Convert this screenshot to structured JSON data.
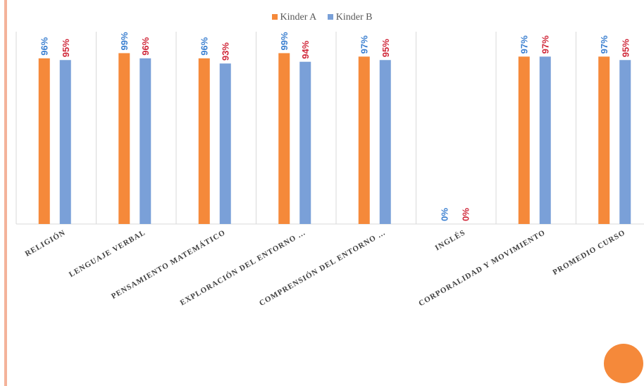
{
  "chart_data": {
    "type": "bar",
    "categories": [
      "RELIGIÓN",
      "LENGUAJE VERBAL",
      "PENSAMIENTO MATEMÁTICO",
      "EXPLORACIÓN DEL ENTORNO ...",
      "COMPRENSIÓN DEL ENTORNO ...",
      "INGLÉS",
      "CORPORALIDAD Y MOVIMIENTO",
      "PROMEDIO CURSO"
    ],
    "series": [
      {
        "name": "Kinder A",
        "color": "#f5893a",
        "label_color": "#3a7fd0",
        "values": [
          96,
          99,
          96,
          99,
          97,
          0,
          97,
          97
        ],
        "labels": [
          "96%",
          "99%",
          "96%",
          "99%",
          "97%",
          "0%",
          "97%",
          "97%"
        ]
      },
      {
        "name": "Kinder B",
        "color": "#7aa0d8",
        "label_color": "#d0283a",
        "values": [
          95,
          96,
          93,
          94,
          95,
          0,
          97,
          95
        ],
        "labels": [
          "95%",
          "96%",
          "93%",
          "94%",
          "95%",
          "0%",
          "97%",
          "95%"
        ]
      }
    ],
    "ylim": [
      0,
      100
    ],
    "grid": "vertical-separators",
    "legend_position": "top-center",
    "xlabel": "",
    "ylabel": "",
    "title": ""
  },
  "colors": {
    "accent_rule": "#f4b39a",
    "decoration_circle": "#f5893a",
    "gridline": "#d9d9d9",
    "axis_text": "#404040"
  }
}
